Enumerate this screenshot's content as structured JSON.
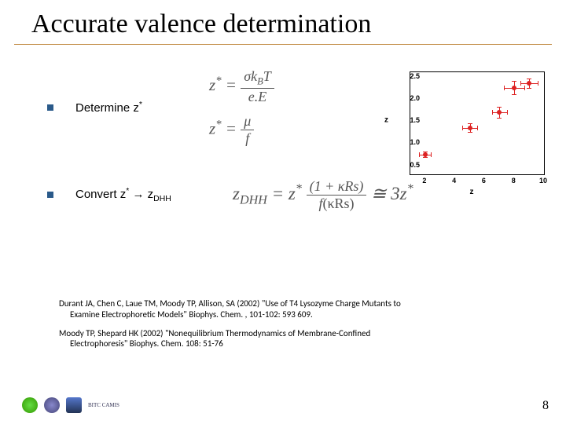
{
  "title": "Accurate valence determination",
  "item1": {
    "label_pre": "Determine z",
    "eq1_lhs": "z",
    "eq1_sup": "*",
    "eq1_eq": " = ",
    "eq1_num": "σk",
    "eq1_num_sub": "B",
    "eq1_num2": "T",
    "eq1_den": "e.E",
    "eq2_lhs": "z",
    "eq2_sup": "*",
    "eq2_eq": " = ",
    "eq2_num": "μ",
    "eq2_den": "f"
  },
  "item2": {
    "label_pre": "Convert z",
    "label_mid": " → z",
    "label_sub": "DHH",
    "eq_lhs": "z",
    "eq_lhs_sub": "DHH",
    "eq_eq1": " = z",
    "eq_sup": "*",
    "eq_num": "(1 + κRs)",
    "eq_den_pre": "f",
    "eq_den": "(κRs)",
    "eq_approx": " ≅ 3z",
    "eq_sup2": "*"
  },
  "chart": {
    "ylabel": "z",
    "xlabel": "z",
    "xlim": [
      1,
      10
    ],
    "ylim": [
      0.3,
      2.6
    ],
    "yticks": [
      "2.5",
      "2.0",
      "1.5",
      "1.0",
      "0.5"
    ],
    "ytick_vals": [
      2.5,
      2.0,
      1.5,
      1.0,
      0.5
    ],
    "xticks": [
      "2",
      "4",
      "6",
      "8",
      "10"
    ],
    "xtick_vals": [
      2,
      4,
      6,
      8,
      10
    ],
    "point_color": "#dd2222",
    "border_color": "#000000",
    "points": [
      {
        "x": 2,
        "y": 0.75,
        "ex": 0.4,
        "ey": 0.06
      },
      {
        "x": 5,
        "y": 1.35,
        "ex": 0.5,
        "ey": 0.1
      },
      {
        "x": 7,
        "y": 1.7,
        "ex": 0.5,
        "ey": 0.12
      },
      {
        "x": 8,
        "y": 2.25,
        "ex": 0.7,
        "ey": 0.15
      },
      {
        "x": 9,
        "y": 2.35,
        "ex": 0.6,
        "ey": 0.1
      }
    ]
  },
  "refs": {
    "r1": "Durant JA, Chen C, Laue TM, Moody TP, Allison, SA (2002) \"Use of T4 Lysozyme Charge Mutants to Examine Electrophoretic Models\" Biophys. Chem. , 101-102: 593 609.",
    "r2": "Moody TP, Shepard HK (2002) \"Nonequilibrium Thermodynamics of Membrane-Confined Electrophoresis\" Biophys. Chem. 108: 51-76"
  },
  "pagenum": "8",
  "logo_text": "BITC\nCAMIS"
}
